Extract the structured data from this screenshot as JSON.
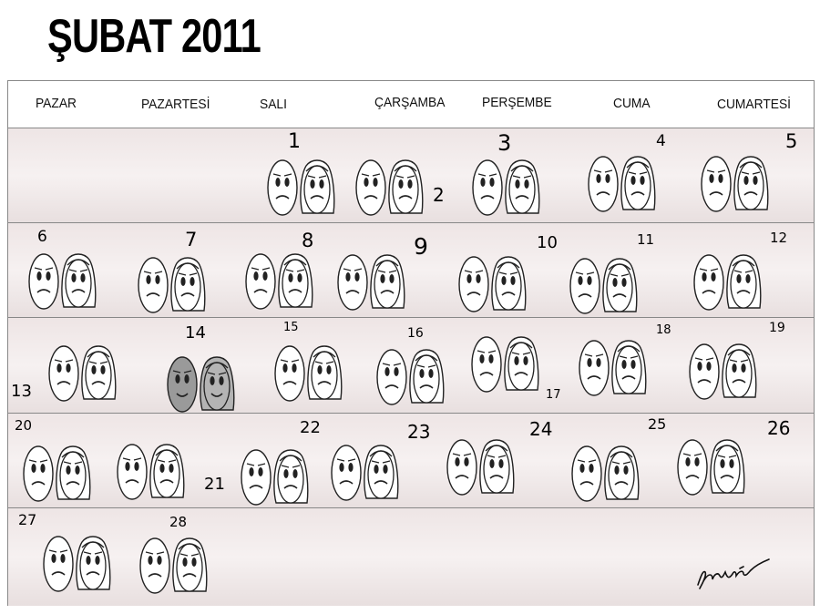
{
  "title": "ŞUBAT 2011",
  "days": [
    "PAZAR",
    "PAZARTESİ",
    "SALI",
    "ÇARŞAMBA",
    "PERŞEMBE",
    "CUMA",
    "CUMARTESİ"
  ],
  "dates": [
    "1",
    "2",
    "3",
    "4",
    "5",
    "6",
    "7",
    "8",
    "9",
    "10",
    "11",
    "12",
    "13",
    "14",
    "15",
    "16",
    "17",
    "18",
    "19",
    "20",
    "21",
    "22",
    "23",
    "24",
    "25",
    "26",
    "27",
    "28"
  ],
  "highlighted_date": "14",
  "icons": {
    "pair": "sad-couple-icon",
    "happy_pair": "happy-couple-icon",
    "signature": "signature-icon"
  }
}
